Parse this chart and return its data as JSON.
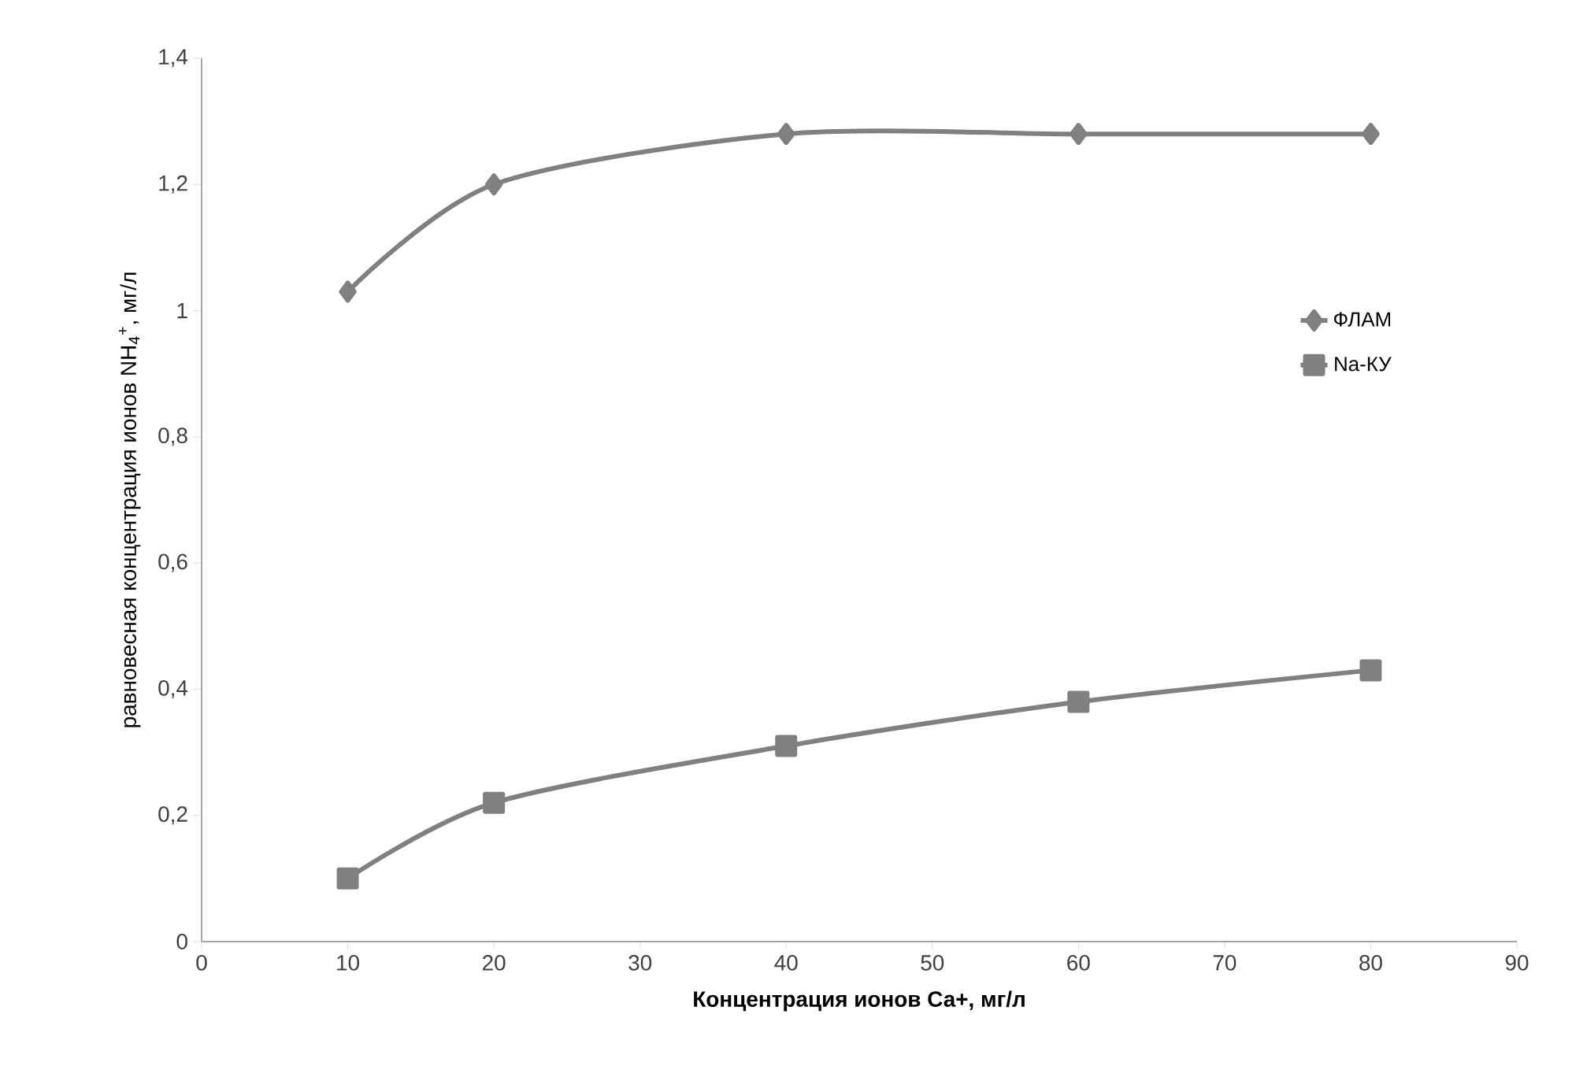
{
  "chart_data": {
    "type": "line",
    "xlabel": "**Концентрация ионов Са+, мг/л**",
    "ylabel": "равновесная концентрация ионов NH$_{4}$$^{+}$, мг/л",
    "x": [
      10,
      20,
      40,
      60,
      80
    ],
    "series": [
      {
        "name": "ФЛАМ",
        "color": "#808080",
        "marker": "diamond",
        "values": [
          1.03,
          1.2,
          1.28,
          1.28,
          1.28
        ]
      },
      {
        "name": "Na-КУ",
        "color": "#808080",
        "marker": "square",
        "values": [
          0.1,
          0.22,
          0.31,
          0.38,
          0.43
        ]
      }
    ],
    "xlim": [
      0,
      90
    ],
    "xticks": [
      0,
      10,
      20,
      30,
      40,
      50,
      60,
      70,
      80,
      90
    ],
    "ylim": [
      0,
      1.4
    ],
    "yticks": [
      0,
      {
        "value": 0.2,
        "label": "0,2"
      },
      {
        "value": 0.4,
        "label": "0,4"
      },
      {
        "value": 0.6,
        "label": "0,6"
      },
      {
        "value": 0.8,
        "label": "0,8"
      },
      1,
      {
        "value": 1.2,
        "label": "1,2"
      },
      {
        "value": 1.4,
        "label": "1,4"
      }
    ],
    "grid": false,
    "legend": "right"
  }
}
